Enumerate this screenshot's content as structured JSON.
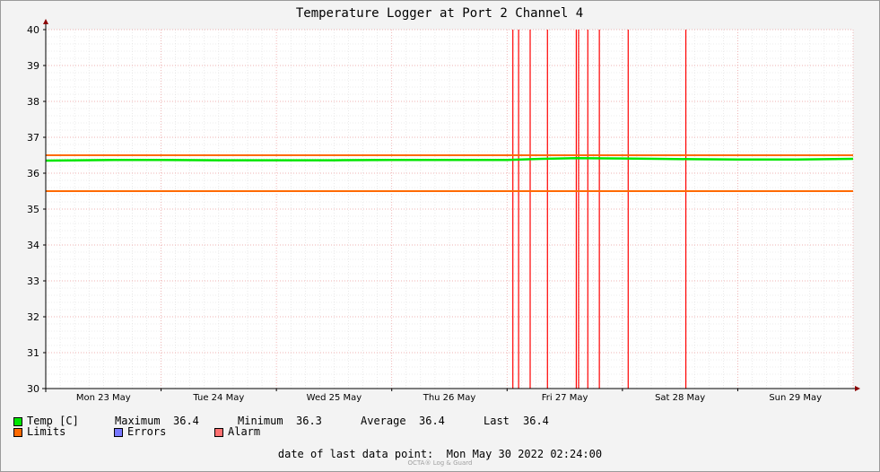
{
  "chart_data": {
    "type": "line",
    "title": "Temperature Logger at Port 2 Channel 4",
    "ylim": [
      30,
      40
    ],
    "yticks": [
      "30",
      "31",
      "32",
      "33",
      "34",
      "35",
      "36",
      "37",
      "38",
      "39",
      "40"
    ],
    "x_day_labels": [
      "Mon 23 May",
      "Tue 24 May",
      "Wed 25 May",
      "Thu 26 May",
      "Fri 27 May",
      "Sat 28 May",
      "Sun 29 May"
    ],
    "x_range_days": [
      0,
      7
    ],
    "grid": true,
    "series": [
      {
        "name": "Temp [C]",
        "color": "#00e600",
        "x_days": [
          0,
          0.3,
          0.6,
          1,
          1.5,
          2,
          2.5,
          3,
          3.5,
          4,
          4.3,
          4.6,
          5,
          5.3,
          5.6,
          6,
          6.5,
          7
        ],
        "values": [
          36.35,
          36.36,
          36.37,
          36.37,
          36.36,
          36.36,
          36.36,
          36.37,
          36.37,
          36.37,
          36.4,
          36.42,
          36.41,
          36.4,
          36.39,
          36.38,
          36.38,
          36.4
        ]
      }
    ],
    "limits": {
      "name": "Limits",
      "color": "#ff6a00",
      "upper": 36.5,
      "lower": 35.5
    },
    "alarm_events_days": [
      4.05,
      4.1,
      4.2,
      4.35,
      4.6,
      4.62,
      4.7,
      4.8,
      5.05,
      5.55
    ],
    "alarm_color": "#ff0000",
    "legend_placement": "bottom"
  },
  "legend": {
    "temp_label": "Temp [C]",
    "maximum_label": "Maximum",
    "maximum_value": "36.4",
    "minimum_label": "Minimum",
    "minimum_value": "36.3",
    "average_label": "Average",
    "average_value": "36.4",
    "last_label": "Last",
    "last_value": "36.4",
    "limits_label": "Limits",
    "errors_label": "Errors",
    "alarm_label": "Alarm",
    "temp_color": "#00e600",
    "limits_color": "#ff6a00",
    "errors_color": "#7777ff",
    "alarm_color": "#ff7070"
  },
  "footer": {
    "last_point_label": "date of last data point:",
    "last_point_value": "Mon May 30 2022 02:24:00",
    "watermark": "OCTA® Log & Guard"
  }
}
